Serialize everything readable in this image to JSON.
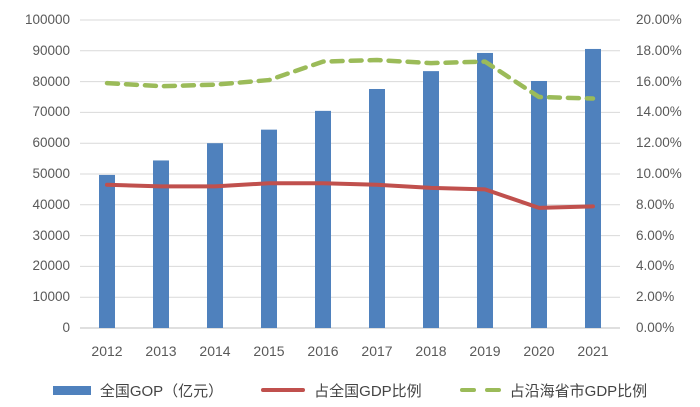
{
  "chart_data": {
    "type": "bar+line combo",
    "title": "",
    "categories": [
      "2012",
      "2013",
      "2014",
      "2015",
      "2016",
      "2017",
      "2018",
      "2019",
      "2020",
      "2021"
    ],
    "series": [
      {
        "name": "全国GOP（亿元）",
        "type": "bar",
        "axis": "left",
        "color": "#4F81BD",
        "values": [
          49700,
          54400,
          60000,
          64400,
          70500,
          77600,
          83400,
          89300,
          80200,
          90600
        ]
      },
      {
        "name": "占全国GDP比例",
        "type": "line",
        "axis": "right",
        "style": "solid",
        "color": "#C0504D",
        "values": [
          9.3,
          9.2,
          9.2,
          9.4,
          9.4,
          9.3,
          9.1,
          9.0,
          7.8,
          7.9
        ]
      },
      {
        "name": "占沿海省市GDP比例",
        "type": "line",
        "axis": "right",
        "style": "dashed",
        "color": "#9BBB59",
        "values": [
          15.9,
          15.7,
          15.8,
          16.1,
          17.3,
          17.4,
          17.2,
          17.3,
          15.0,
          14.9
        ]
      }
    ],
    "left_axis": {
      "min": 0,
      "max": 100000,
      "step": 10000,
      "tick_labels_top_to_bottom": [
        "100000",
        "90000",
        "80000",
        "70000",
        "60000",
        "50000",
        "40000",
        "30000",
        "20000",
        "10000",
        "0"
      ]
    },
    "right_axis": {
      "min": 0,
      "max": 20,
      "step": 2,
      "tick_labels_top_to_bottom": [
        "20.00%",
        "18.00%",
        "16.00%",
        "14.00%",
        "12.00%",
        "10.00%",
        "8.00%",
        "6.00%",
        "4.00%",
        "2.00%",
        "0.00%"
      ]
    },
    "grid": "horizontal-only",
    "legend_position": "bottom-center"
  },
  "legend": {
    "bar_label": "全国GOP（亿元）",
    "line1_label": "占全国GDP比例",
    "line2_label": "占沿海省市GDP比例"
  },
  "colors": {
    "bar": "#4F81BD",
    "line_solid": "#C0504D",
    "line_dashed": "#9BBB59",
    "gridline": "#D9D9D9",
    "axis_line": "#BFBFBF",
    "tick_text": "#595959"
  }
}
